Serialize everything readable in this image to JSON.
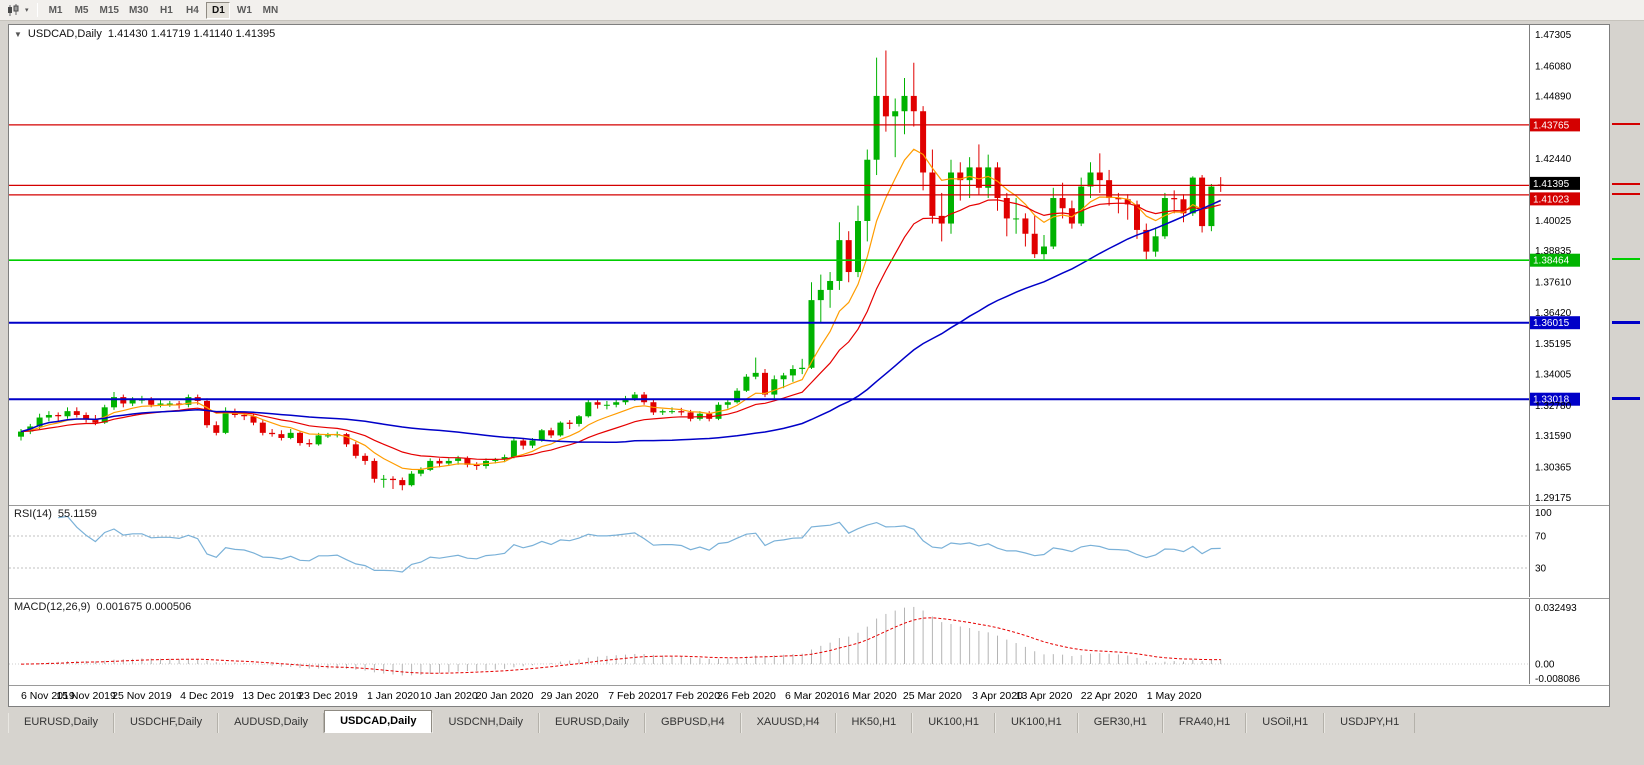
{
  "icons": {
    "chart_menu_arrow": "▼",
    "toolbar_dropdown_arrow": "▾"
  },
  "toolbar": {
    "timeframes": [
      "M1",
      "M5",
      "M15",
      "M30",
      "H1",
      "H4",
      "D1",
      "W1",
      "MN"
    ],
    "active": "D1"
  },
  "header": {
    "symbol": "USDCAD,Daily",
    "ohlc": "1.41430 1.41719 1.41140 1.41395"
  },
  "indicator_labels": {
    "rsi_name": "RSI(14)",
    "rsi_value": "55.1159",
    "macd_name": "MACD(12,26,9)",
    "macd_value": "0.001675 0.000506"
  },
  "chart_data": {
    "type": "candlestick",
    "title": "USDCAD,Daily",
    "colors": {
      "up": "#00b200",
      "down": "#e00000",
      "axis_text": "#000000"
    },
    "scale": {
      "max": 1.476,
      "min": 1.2903
    },
    "y_ticks": [
      "1.47305",
      "1.46080",
      "1.44890",
      "1.42440",
      "1.40025",
      "1.38835",
      "1.37610",
      "1.36420",
      "1.35195",
      "1.34005",
      "1.32780",
      "1.31590",
      "1.30365",
      "1.29175"
    ],
    "x_labels": [
      [
        "6 Nov 2019",
        0
      ],
      [
        "15 Nov 2019",
        7
      ],
      [
        "25 Nov 2019",
        13
      ],
      [
        "4 Dec 2019",
        20
      ],
      [
        "13 Dec 2019",
        27
      ],
      [
        "23 Dec 2019",
        33
      ],
      [
        "1 Jan 2020",
        40
      ],
      [
        "10 Jan 2020",
        46
      ],
      [
        "20 Jan 2020",
        52
      ],
      [
        "29 Jan 2020",
        59
      ],
      [
        "7 Feb 2020",
        66
      ],
      [
        "17 Feb 2020",
        72
      ],
      [
        "26 Feb 2020",
        78
      ],
      [
        "6 Mar 2020",
        85
      ],
      [
        "16 Mar 2020",
        91
      ],
      [
        "25 Mar 2020",
        98
      ],
      [
        "3 Apr 2020",
        105
      ],
      [
        "13 Apr 2020",
        110
      ],
      [
        "22 Apr 2020",
        117
      ],
      [
        "1 May 2020",
        124
      ]
    ],
    "ohlc": [
      [
        1.3155,
        1.3185,
        1.314,
        1.3175
      ],
      [
        1.3175,
        1.3205,
        1.3165,
        1.3195
      ],
      [
        1.3195,
        1.3245,
        1.3185,
        1.323
      ],
      [
        1.323,
        1.3255,
        1.3215,
        1.324
      ],
      [
        1.324,
        1.325,
        1.3215,
        1.3235
      ],
      [
        1.3235,
        1.327,
        1.3225,
        1.3255
      ],
      [
        1.3255,
        1.327,
        1.323,
        1.324
      ],
      [
        1.324,
        1.325,
        1.321,
        1.3225
      ],
      [
        1.3225,
        1.324,
        1.32,
        1.321
      ],
      [
        1.321,
        1.328,
        1.3205,
        1.327
      ],
      [
        1.327,
        1.333,
        1.326,
        1.331
      ],
      [
        1.331,
        1.332,
        1.327,
        1.3285
      ],
      [
        1.3285,
        1.331,
        1.3275,
        1.33
      ],
      [
        1.33,
        1.3315,
        1.3285,
        1.33
      ],
      [
        1.33,
        1.331,
        1.327,
        1.328
      ],
      [
        1.328,
        1.33,
        1.327,
        1.3285
      ],
      [
        1.3285,
        1.3295,
        1.3272,
        1.3285
      ],
      [
        1.3285,
        1.3295,
        1.3265,
        1.328
      ],
      [
        1.328,
        1.332,
        1.327,
        1.331
      ],
      [
        1.331,
        1.332,
        1.328,
        1.3295
      ],
      [
        1.3295,
        1.3305,
        1.319,
        1.32
      ],
      [
        1.32,
        1.3215,
        1.316,
        1.317
      ],
      [
        1.317,
        1.327,
        1.3165,
        1.3255
      ],
      [
        1.3255,
        1.3265,
        1.323,
        1.324
      ],
      [
        1.324,
        1.325,
        1.322,
        1.3235
      ],
      [
        1.3235,
        1.3245,
        1.32,
        1.321
      ],
      [
        1.321,
        1.322,
        1.316,
        1.317
      ],
      [
        1.317,
        1.3185,
        1.3155,
        1.3165
      ],
      [
        1.3165,
        1.318,
        1.314,
        1.315
      ],
      [
        1.315,
        1.3185,
        1.3145,
        1.317
      ],
      [
        1.317,
        1.3175,
        1.312,
        1.313
      ],
      [
        1.313,
        1.3145,
        1.3115,
        1.3125
      ],
      [
        1.3125,
        1.317,
        1.312,
        1.316
      ],
      [
        1.316,
        1.317,
        1.315,
        1.316
      ],
      [
        1.316,
        1.3175,
        1.3152,
        1.3165
      ],
      [
        1.3165,
        1.317,
        1.3115,
        1.3125
      ],
      [
        1.3125,
        1.3135,
        1.307,
        1.308
      ],
      [
        1.308,
        1.309,
        1.3045,
        1.306
      ],
      [
        1.306,
        1.307,
        1.2975,
        1.299
      ],
      [
        1.299,
        1.3005,
        1.2955,
        1.299
      ],
      [
        1.299,
        1.3,
        1.295,
        1.2985
      ],
      [
        1.2985,
        1.2995,
        1.2945,
        1.2965
      ],
      [
        1.2965,
        1.302,
        1.296,
        1.301
      ],
      [
        1.301,
        1.3035,
        1.3,
        1.3025
      ],
      [
        1.3025,
        1.307,
        1.302,
        1.306
      ],
      [
        1.306,
        1.307,
        1.3035,
        1.305
      ],
      [
        1.305,
        1.307,
        1.304,
        1.306
      ],
      [
        1.306,
        1.308,
        1.3045,
        1.307
      ],
      [
        1.307,
        1.3078,
        1.3035,
        1.3045
      ],
      [
        1.3045,
        1.3055,
        1.3025,
        1.304
      ],
      [
        1.304,
        1.307,
        1.303,
        1.306
      ],
      [
        1.306,
        1.3072,
        1.305,
        1.3065
      ],
      [
        1.3065,
        1.3085,
        1.3055,
        1.3075
      ],
      [
        1.3075,
        1.315,
        1.307,
        1.314
      ],
      [
        1.314,
        1.315,
        1.3105,
        1.312
      ],
      [
        1.312,
        1.315,
        1.311,
        1.314
      ],
      [
        1.314,
        1.3185,
        1.3135,
        1.318
      ],
      [
        1.318,
        1.319,
        1.315,
        1.316
      ],
      [
        1.316,
        1.3215,
        1.3155,
        1.321
      ],
      [
        1.321,
        1.322,
        1.3185,
        1.3205
      ],
      [
        1.3205,
        1.324,
        1.3195,
        1.3235
      ],
      [
        1.3235,
        1.33,
        1.323,
        1.329
      ],
      [
        1.329,
        1.33,
        1.3265,
        1.328
      ],
      [
        1.328,
        1.3295,
        1.3262,
        1.328
      ],
      [
        1.328,
        1.33,
        1.327,
        1.329
      ],
      [
        1.329,
        1.3315,
        1.328,
        1.3305
      ],
      [
        1.3305,
        1.333,
        1.3295,
        1.332
      ],
      [
        1.332,
        1.333,
        1.328,
        1.329
      ],
      [
        1.329,
        1.33,
        1.324,
        1.325
      ],
      [
        1.325,
        1.3262,
        1.324,
        1.3255
      ],
      [
        1.3255,
        1.327,
        1.3245,
        1.3255
      ],
      [
        1.3255,
        1.3268,
        1.3238,
        1.325
      ],
      [
        1.325,
        1.326,
        1.3215,
        1.3225
      ],
      [
        1.3225,
        1.3255,
        1.3218,
        1.3245
      ],
      [
        1.3245,
        1.3255,
        1.3215,
        1.3225
      ],
      [
        1.3225,
        1.329,
        1.322,
        1.328
      ],
      [
        1.328,
        1.33,
        1.3265,
        1.329
      ],
      [
        1.329,
        1.3345,
        1.3285,
        1.3335
      ],
      [
        1.3335,
        1.34,
        1.333,
        1.339
      ],
      [
        1.339,
        1.3465,
        1.338,
        1.3405
      ],
      [
        1.3405,
        1.342,
        1.331,
        1.332
      ],
      [
        1.332,
        1.3395,
        1.3305,
        1.338
      ],
      [
        1.338,
        1.3405,
        1.3345,
        1.3395
      ],
      [
        1.3395,
        1.3435,
        1.337,
        1.342
      ],
      [
        1.342,
        1.346,
        1.34,
        1.3425
      ],
      [
        1.3425,
        1.376,
        1.342,
        1.369
      ],
      [
        1.369,
        1.379,
        1.36,
        1.373
      ],
      [
        1.373,
        1.38,
        1.366,
        1.3765
      ],
      [
        1.3765,
        1.3995,
        1.373,
        1.3925
      ],
      [
        1.3925,
        1.396,
        1.376,
        1.38
      ],
      [
        1.38,
        1.406,
        1.378,
        1.4
      ],
      [
        1.4,
        1.428,
        1.392,
        1.424
      ],
      [
        1.424,
        1.464,
        1.418,
        1.449
      ],
      [
        1.449,
        1.4668,
        1.435,
        1.441
      ],
      [
        1.441,
        1.448,
        1.425,
        1.443
      ],
      [
        1.443,
        1.456,
        1.434,
        1.449
      ],
      [
        1.449,
        1.462,
        1.437,
        1.443
      ],
      [
        1.443,
        1.445,
        1.412,
        1.419
      ],
      [
        1.419,
        1.428,
        1.399,
        1.402
      ],
      [
        1.402,
        1.411,
        1.392,
        1.399
      ],
      [
        1.399,
        1.424,
        1.395,
        1.419
      ],
      [
        1.419,
        1.423,
        1.408,
        1.416
      ],
      [
        1.416,
        1.425,
        1.409,
        1.421
      ],
      [
        1.421,
        1.43,
        1.41,
        1.413
      ],
      [
        1.413,
        1.426,
        1.409,
        1.421
      ],
      [
        1.421,
        1.423,
        1.404,
        1.409
      ],
      [
        1.409,
        1.411,
        1.394,
        1.401
      ],
      [
        1.401,
        1.409,
        1.395,
        1.401
      ],
      [
        1.401,
        1.403,
        1.39,
        1.395
      ],
      [
        1.395,
        1.402,
        1.3855,
        1.387
      ],
      [
        1.387,
        1.3945,
        1.385,
        1.39
      ],
      [
        1.39,
        1.413,
        1.389,
        1.409
      ],
      [
        1.409,
        1.415,
        1.401,
        1.405
      ],
      [
        1.405,
        1.408,
        1.397,
        1.399
      ],
      [
        1.399,
        1.417,
        1.398,
        1.4135
      ],
      [
        1.4135,
        1.423,
        1.409,
        1.419
      ],
      [
        1.419,
        1.4265,
        1.411,
        1.416
      ],
      [
        1.416,
        1.42,
        1.406,
        1.409
      ],
      [
        1.409,
        1.411,
        1.403,
        1.4085
      ],
      [
        1.4085,
        1.4105,
        1.4005,
        1.4065
      ],
      [
        1.4065,
        1.408,
        1.393,
        1.3965
      ],
      [
        1.3965,
        1.399,
        1.385,
        1.388
      ],
      [
        1.388,
        1.3975,
        1.386,
        1.394
      ],
      [
        1.394,
        1.411,
        1.393,
        1.409
      ],
      [
        1.409,
        1.412,
        1.403,
        1.4085
      ],
      [
        1.4085,
        1.4105,
        1.3995,
        1.403
      ],
      [
        1.403,
        1.4175,
        1.402,
        1.417
      ],
      [
        1.417,
        1.418,
        1.3955,
        1.398
      ],
      [
        1.398,
        1.4145,
        1.396,
        1.4135
      ],
      [
        1.4143,
        1.41719,
        1.4114,
        1.41395
      ]
    ],
    "hlines": [
      {
        "price": 1.43765,
        "label": "1.43765",
        "color": "#d40000",
        "badge": "#d40000",
        "width": 1.3,
        "badge_dy": 0
      },
      {
        "price": 1.41395,
        "label": "1.41395",
        "color": "#d40000",
        "badge": "#000000",
        "width": 1.3,
        "badge_dy": -2,
        "current_price": true
      },
      {
        "price": 1.41023,
        "label": "1.41023",
        "color": "#d40000",
        "badge": "#d40000",
        "width": 1.3,
        "badge_dy": 4
      },
      {
        "price": 1.38464,
        "label": "1.38464",
        "color": "#00ce00",
        "badge": "#00b400",
        "width": 1.6,
        "badge_dy": 0
      },
      {
        "price": 1.36015,
        "label": "1.36015",
        "color": "#0000c8",
        "badge": "#0000c8",
        "width": 2,
        "badge_dy": 0
      },
      {
        "price": 1.33018,
        "label": "1.33018",
        "color": "#0000c8",
        "badge": "#0000c8",
        "width": 2,
        "badge_dy": 0
      }
    ],
    "overlays": [
      {
        "name": "ma-fast-orange",
        "type": "ema",
        "period": 8,
        "color": "#ff9c00",
        "width": 1.2
      },
      {
        "name": "ma-mid-red",
        "type": "ema",
        "period": 18,
        "color": "#e60000",
        "width": 1.2
      },
      {
        "name": "ma-slow-blue",
        "type": "sma",
        "period": 45,
        "color": "#0000c8",
        "width": 1.5
      }
    ],
    "rsi": {
      "period": 14,
      "levels": [
        70,
        30
      ],
      "axis_labels": [
        "100",
        "70",
        "30"
      ],
      "color": "#7ab1d8"
    },
    "macd": {
      "fast": 12,
      "slow": 26,
      "signal": 9,
      "range": {
        "max": 0.032493,
        "min": -0.008086
      },
      "axis_labels": [
        "0.032493",
        "0.00",
        "-0.008086"
      ],
      "hist_color": "#b4b4b4",
      "signal_color": "#e60000"
    }
  },
  "tabs": {
    "active_index": 3,
    "items": [
      "EURUSD,Daily",
      "USDCHF,Daily",
      "AUDUSD,Daily",
      "USDCAD,Daily",
      "USDCNH,Daily",
      "EURUSD,Daily",
      "GBPUSD,H4",
      "XAUUSD,H4",
      "HK50,H1",
      "UK100,H1",
      "UK100,H1",
      "GER30,H1",
      "FRA40,H1",
      "USOil,H1",
      "USDJPY,H1"
    ]
  }
}
